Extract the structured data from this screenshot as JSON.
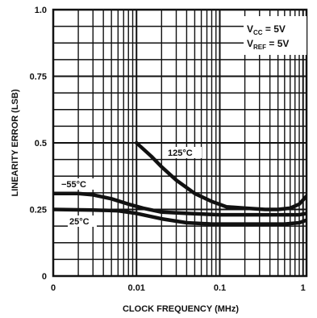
{
  "chart_data": {
    "type": "line",
    "title": "",
    "xlabel": "CLOCK FREQUENCY (MHz)",
    "ylabel": "LINEARITY ERROR (LSB)",
    "x_scale": "log",
    "x_ticks": [
      {
        "value": 0.001,
        "label": "0"
      },
      {
        "value": 0.01,
        "label": "0.01"
      },
      {
        "value": 0.1,
        "label": "0.1"
      },
      {
        "value": 1,
        "label": "1"
      }
    ],
    "y_ticks": [
      {
        "value": 0,
        "label": "0"
      },
      {
        "value": 0.25,
        "label": "0.25"
      },
      {
        "value": 0.5,
        "label": "0.5"
      },
      {
        "value": 0.75,
        "label": "0.75"
      },
      {
        "value": 1.0,
        "label": "1.0"
      }
    ],
    "xlim": [
      0.001,
      1.1
    ],
    "ylim": [
      0,
      1.0
    ],
    "grid": true,
    "y_minor_step": 0.0625,
    "series": [
      {
        "name": "125°C",
        "x": [
          0.01,
          0.015,
          0.02,
          0.03,
          0.05,
          0.08,
          0.12,
          0.2,
          0.35,
          0.5,
          0.7,
          0.9,
          1.1
        ],
        "y": [
          0.5,
          0.45,
          0.41,
          0.36,
          0.31,
          0.28,
          0.26,
          0.255,
          0.25,
          0.25,
          0.255,
          0.27,
          0.3
        ]
      },
      {
        "name": "−55°C",
        "x": [
          0.001,
          0.002,
          0.003,
          0.005,
          0.008,
          0.012,
          0.02,
          0.04,
          0.1,
          0.3,
          0.6,
          0.9,
          1.1
        ],
        "y": [
          0.31,
          0.31,
          0.305,
          0.29,
          0.27,
          0.255,
          0.24,
          0.235,
          0.23,
          0.23,
          0.23,
          0.23,
          0.235
        ]
      },
      {
        "name": "25°C",
        "x": [
          0.001,
          0.003,
          0.006,
          0.01,
          0.02,
          0.04,
          0.08,
          0.15,
          0.3,
          0.6,
          0.9,
          1.1
        ],
        "y": [
          0.25,
          0.248,
          0.245,
          0.235,
          0.215,
          0.2,
          0.195,
          0.195,
          0.195,
          0.195,
          0.2,
          0.21
        ]
      }
    ],
    "annotations": [
      {
        "text": "125°C",
        "series": "125°C"
      },
      {
        "text": "−55°C",
        "series": "−55°C"
      },
      {
        "text": "25°C",
        "series": "25°C"
      }
    ],
    "conditions": {
      "line1": {
        "main": "V",
        "sub": "CC",
        "rest": " = 5V"
      },
      "line2": {
        "main": "V",
        "sub": "REF",
        "rest": " = 5V"
      }
    }
  }
}
